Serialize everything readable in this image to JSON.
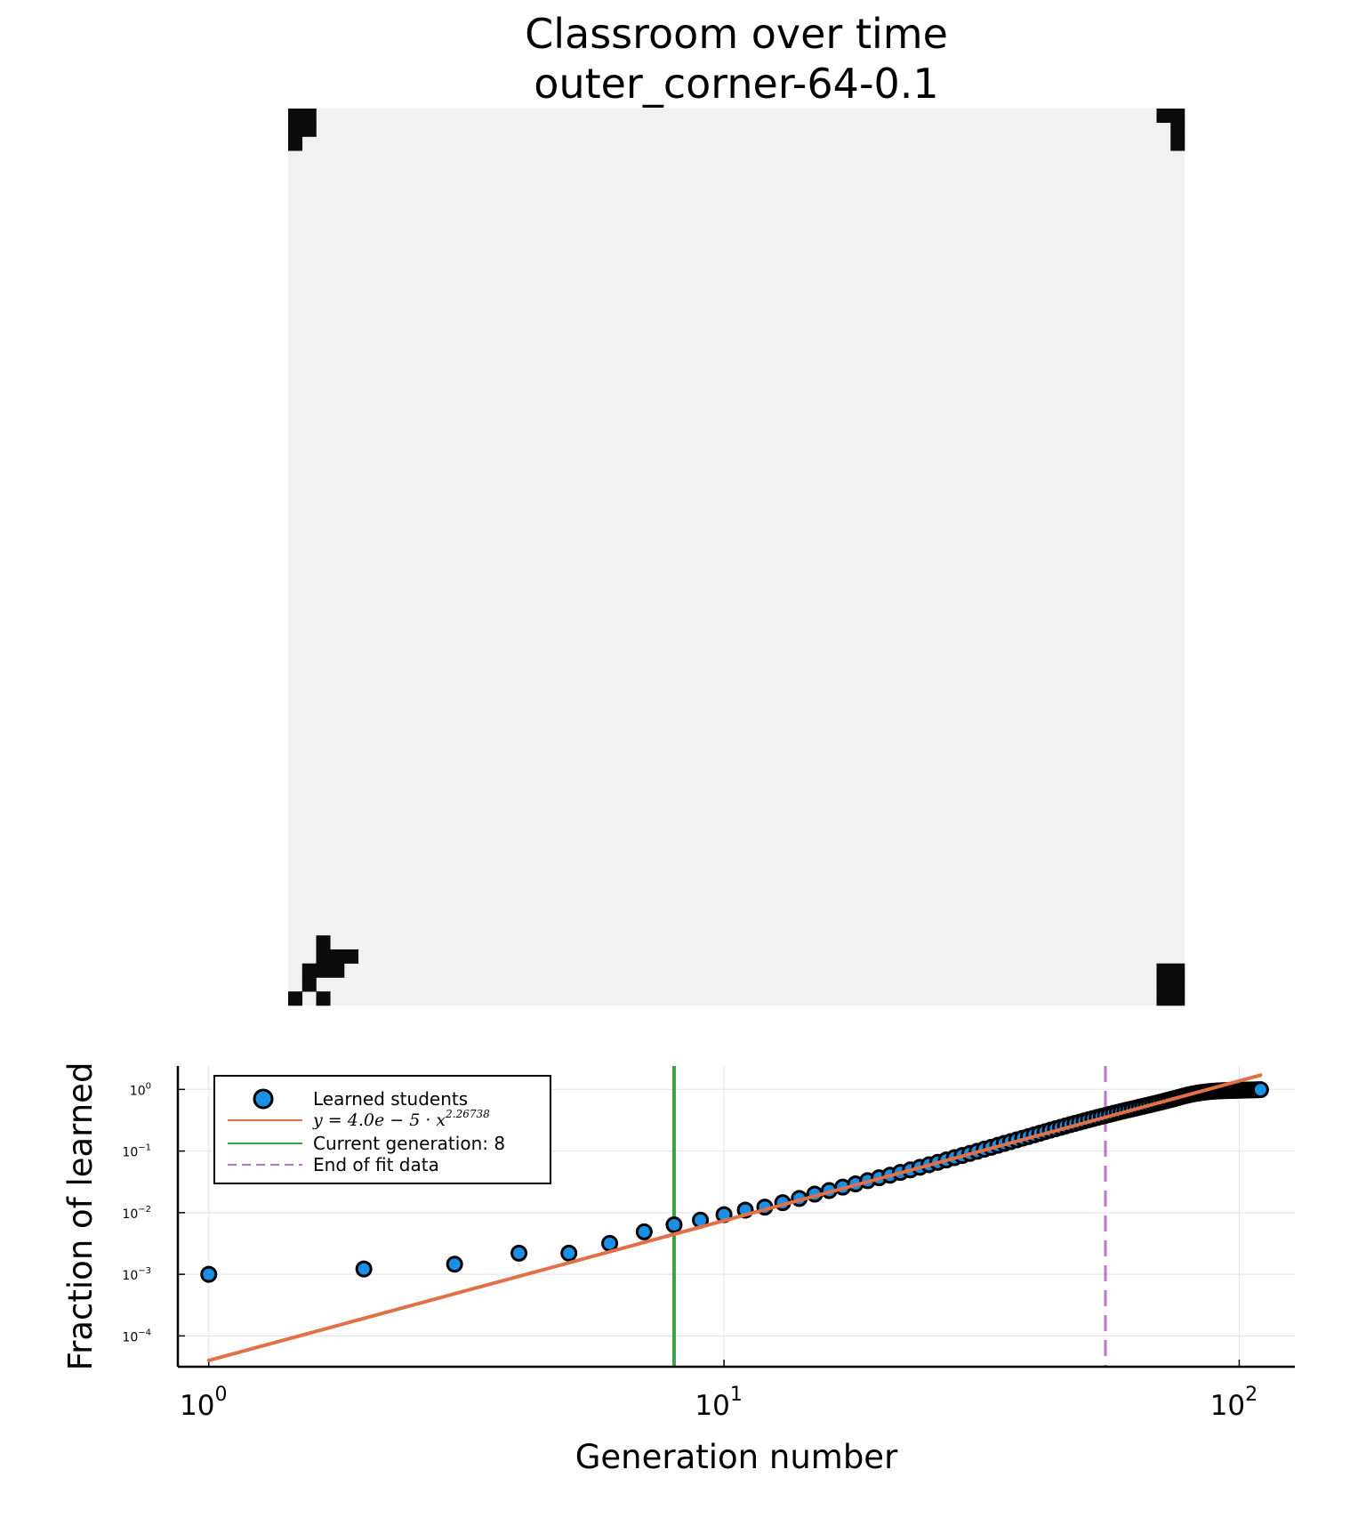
{
  "figure": {
    "title_line1": "Classroom over time",
    "title_line2": "outer_corner-64-0.1"
  },
  "classroom": {
    "background_color": "#f1f1f1",
    "learned_color": "#0b0b0b",
    "grid_size": 64,
    "learned_cells": [
      [
        0,
        0
      ],
      [
        0,
        1
      ],
      [
        0,
        2
      ],
      [
        1,
        0
      ],
      [
        1,
        1
      ],
      [
        62,
        0
      ],
      [
        63,
        0
      ],
      [
        63,
        1
      ],
      [
        63,
        2
      ],
      [
        2,
        59
      ],
      [
        2,
        60
      ],
      [
        3,
        60
      ],
      [
        4,
        60
      ],
      [
        3,
        61
      ],
      [
        2,
        61
      ],
      [
        1,
        61
      ],
      [
        1,
        62
      ],
      [
        0,
        63
      ],
      [
        2,
        63
      ],
      [
        62,
        61
      ],
      [
        63,
        61
      ],
      [
        62,
        62
      ],
      [
        63,
        62
      ],
      [
        62,
        63
      ],
      [
        63,
        63
      ]
    ]
  },
  "chart_data": {
    "type": "scatter",
    "xscale": "log",
    "yscale": "log",
    "xlabel": "Generation number",
    "ylabel": "Fraction of learned",
    "x_ticks": [
      {
        "base": "10",
        "exp": "0",
        "value": 1
      },
      {
        "base": "10",
        "exp": "1",
        "value": 10
      },
      {
        "base": "10",
        "exp": "2",
        "value": 100
      }
    ],
    "y_ticks": [
      {
        "base": "10",
        "exp": "0",
        "value": 1
      },
      {
        "base": "10",
        "exp": "−1",
        "value": 0.1
      },
      {
        "base": "10",
        "exp": "−2",
        "value": 0.01
      },
      {
        "base": "10",
        "exp": "−3",
        "value": 0.001
      },
      {
        "base": "10",
        "exp": "−4",
        "value": 0.0001
      }
    ],
    "grid": true,
    "legend_position": "top-left",
    "series": [
      {
        "name": "Learned students",
        "kind": "scatter",
        "color": "#1a8fe3",
        "x": [
          1,
          2,
          3,
          4,
          5,
          6,
          7,
          8,
          9,
          10,
          11,
          12,
          13,
          14,
          15,
          16,
          17,
          18,
          19,
          20,
          21,
          22,
          23,
          24,
          25,
          26,
          27,
          28,
          29,
          30,
          31,
          32,
          33,
          34,
          35,
          36,
          37,
          38,
          39,
          40,
          41,
          42,
          43,
          44,
          45,
          46,
          47,
          48,
          49,
          50,
          51,
          52,
          53,
          54,
          55,
          56,
          57,
          58,
          59,
          60,
          61,
          62,
          63,
          64,
          65,
          66,
          67,
          68,
          69,
          70,
          71,
          72,
          73,
          74,
          75,
          76,
          77,
          78,
          79,
          80,
          81,
          82,
          83,
          84,
          85,
          86,
          87,
          88,
          89,
          90,
          91,
          92,
          93,
          94,
          95,
          96,
          97,
          98,
          99,
          100,
          101,
          102,
          103,
          104,
          105,
          106,
          107,
          108,
          109,
          110
        ],
        "y": [
          0.001,
          0.00122,
          0.00146,
          0.0022,
          0.0022,
          0.00317,
          0.00488,
          0.00635,
          0.00757,
          0.00928,
          0.011,
          0.0123,
          0.0145,
          0.017,
          0.02,
          0.0228,
          0.026,
          0.0293,
          0.033,
          0.0368,
          0.0405,
          0.045,
          0.0495,
          0.0545,
          0.06,
          0.0655,
          0.0715,
          0.078,
          0.0845,
          0.0915,
          0.099,
          0.107,
          0.115,
          0.124,
          0.133,
          0.142,
          0.152,
          0.162,
          0.172,
          0.183,
          0.194,
          0.206,
          0.218,
          0.23,
          0.242,
          0.255,
          0.268,
          0.281,
          0.294,
          0.308,
          0.322,
          0.336,
          0.35,
          0.364,
          0.378,
          0.393,
          0.408,
          0.423,
          0.438,
          0.453,
          0.468,
          0.483,
          0.499,
          0.515,
          0.531,
          0.547,
          0.563,
          0.58,
          0.597,
          0.615,
          0.633,
          0.652,
          0.672,
          0.692,
          0.713,
          0.735,
          0.757,
          0.779,
          0.8,
          0.82,
          0.838,
          0.855,
          0.87,
          0.884,
          0.897,
          0.908,
          0.918,
          0.926,
          0.933,
          0.939,
          0.944,
          0.948,
          0.952,
          0.955,
          0.958,
          0.961,
          0.963,
          0.965,
          0.967,
          0.969,
          0.971,
          0.973,
          0.975,
          0.977,
          0.979,
          0.981,
          0.983,
          0.985,
          0.987,
          0.989
        ]
      },
      {
        "name": "y = 4.0e − 5 · x^2.26738",
        "label_prefix": "y = 4.0e − 5 · x",
        "label_exp": "2.26738",
        "kind": "line",
        "color": "#e26f46",
        "coef": 4e-05,
        "exponent": 2.26738,
        "x_range": [
          1,
          110
        ]
      },
      {
        "name": "Current generation: 8",
        "kind": "vline",
        "color": "#3ba245",
        "x": 8
      },
      {
        "name": "End of fit data",
        "kind": "vline-dashed",
        "color": "#c271d2",
        "x": 55
      }
    ]
  }
}
